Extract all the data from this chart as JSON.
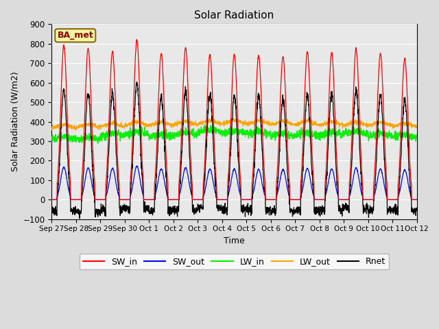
{
  "title": "Solar Radiation",
  "xlabel": "Time",
  "ylabel": "Solar Radiation (W/m2)",
  "ylim": [
    -100,
    900
  ],
  "yticks": [
    -100,
    0,
    100,
    200,
    300,
    400,
    500,
    600,
    700,
    800,
    900
  ],
  "bg_color": "#dcdcdc",
  "plot_bg_color": "#e8e8e8",
  "legend_label": "BA_met",
  "line_colors": {
    "SW_in": "red",
    "SW_out": "blue",
    "LW_in": "#00ee00",
    "LW_out": "orange",
    "Rnet": "black"
  },
  "date_ticks": [
    "Sep 27",
    "Sep 28",
    "Sep 29",
    "Sep 30",
    "Oct 1",
    "Oct 2",
    "Oct 3",
    "Oct 4",
    "Oct 5",
    "Oct 6",
    "Oct 7",
    "Oct 8",
    "Oct 9",
    "Oct 10",
    "Oct 11",
    "Oct 12"
  ],
  "date_tick_positions": [
    0,
    1,
    2,
    3,
    4,
    5,
    6,
    7,
    8,
    9,
    10,
    11,
    12,
    13,
    14,
    15
  ],
  "n_days": 15,
  "n_per_day": 144
}
